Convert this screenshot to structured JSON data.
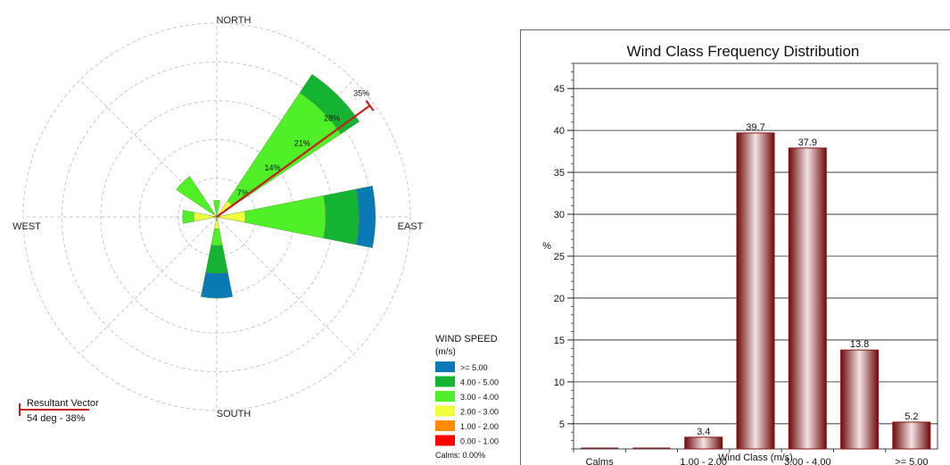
{
  "chart_data": [
    {
      "type": "wind-rose",
      "directions": [
        "N",
        "NNE",
        "NE",
        "ENE",
        "E",
        "ESE",
        "SE",
        "SSE",
        "S",
        "SSW",
        "SW",
        "WSW",
        "W",
        "WNW",
        "NW",
        "NNW"
      ],
      "compass_labels": {
        "north": "NORTH",
        "east": "EAST",
        "south": "SOUTH",
        "west": "WEST"
      },
      "ring_labels": [
        "7%",
        "14%",
        "21%",
        "28%",
        "35%"
      ],
      "ring_values": [
        7,
        14,
        21,
        28,
        35
      ],
      "petals": [
        {
          "dir": "N",
          "bands": [
            0,
            0,
            0,
            0.2,
            2.8,
            0,
            0
          ]
        },
        {
          "dir": "NE",
          "bands": [
            0,
            0,
            0,
            3.5,
            23.5,
            4,
            0
          ]
        },
        {
          "dir": "E",
          "bands": [
            0,
            0.2,
            0.2,
            4.8,
            14.5,
            6,
            3
          ]
        },
        {
          "dir": "S",
          "bands": [
            0,
            0.2,
            0.5,
            1.5,
            3,
            5,
            4.5
          ]
        },
        {
          "dir": "W",
          "bands": [
            0,
            0.2,
            0.5,
            3.5,
            2,
            0,
            0
          ]
        },
        {
          "dir": "NW",
          "bands": [
            0,
            0,
            0,
            0.8,
            8,
            0,
            0
          ]
        }
      ],
      "band_colors": [
        "#ff0000",
        "#ff8c00",
        "#f0ff3c",
        "#50f028",
        "#14b432",
        "#0a7ab4"
      ],
      "legend": {
        "title": "WIND SPEED",
        "unit": "(m/s)",
        "entries": [
          {
            "label": ">= 5.00",
            "color": "#0a7ab4"
          },
          {
            "label": "4.00 - 5.00",
            "color": "#14b432"
          },
          {
            "label": "3.00 - 4.00",
            "color": "#50f028"
          },
          {
            "label": "2.00 - 3.00",
            "color": "#f0ff3c"
          },
          {
            "label": "1.00 - 2.00",
            "color": "#ff8c00"
          },
          {
            "label": "0.00 - 1.00",
            "color": "#ff0000"
          }
        ],
        "calms": "Calms: 0.00%"
      },
      "resultant": {
        "title": "Resultant Vector",
        "text": "54 deg - 38%",
        "direction_deg": 54,
        "magnitude": 38,
        "color": "#c81e1e"
      }
    },
    {
      "type": "bar",
      "title": "Wind Class Frequency Distribution",
      "xlabel": "Wind Class (m/s)",
      "ylabel": "%",
      "categories": [
        "Calms",
        "0.00 - 1.00",
        "1.00 - 2.00",
        "2.00 - 3.00",
        "3.00 - 4.00",
        "4.00 - 5.00",
        ">= 5.00"
      ],
      "values": [
        0,
        0,
        3.4,
        39.7,
        37.9,
        13.8,
        5.2
      ],
      "value_labels": [
        "",
        "",
        "3.4",
        "39.7",
        "37.9",
        "13.8",
        "5.2"
      ],
      "yticks": [
        "5",
        "10",
        "15",
        "20",
        "25",
        "30",
        "35",
        "40",
        "45"
      ],
      "ylim": [
        2,
        48
      ],
      "bar_color": "#8b1010"
    }
  ]
}
